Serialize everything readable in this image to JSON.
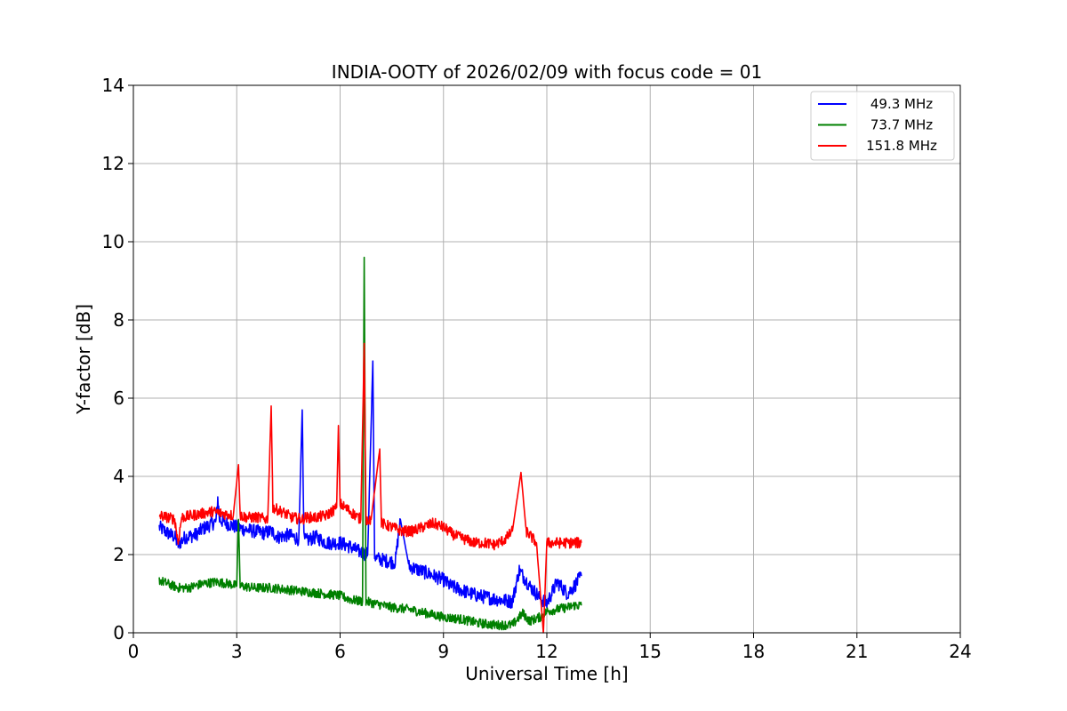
{
  "chart_data": {
    "type": "line",
    "title": "INDIA-OOTY of 2026/02/09 with focus code = 01",
    "xlabel": "Universal Time [h]",
    "ylabel": "Y-factor [dB]",
    "xlim": [
      0,
      24
    ],
    "ylim": [
      0,
      14
    ],
    "xticks": [
      0,
      3,
      6,
      9,
      12,
      15,
      18,
      21,
      24
    ],
    "yticks": [
      0,
      2,
      4,
      6,
      8,
      10,
      12,
      14
    ],
    "grid": true,
    "legend_position": "top-right",
    "series": [
      {
        "name": "49.3 MHz",
        "color": "#0000ff",
        "x": [
          0.75,
          1.0,
          1.2,
          1.3,
          1.5,
          1.8,
          2.0,
          2.2,
          2.4,
          2.45,
          2.5,
          2.7,
          3.0,
          3.2,
          3.5,
          3.8,
          4.0,
          4.2,
          4.5,
          4.8,
          4.9,
          4.95,
          5.0,
          5.3,
          5.6,
          6.0,
          6.3,
          6.5,
          6.8,
          6.95,
          7.0,
          7.05,
          7.3,
          7.6,
          7.75,
          8.0,
          8.3,
          8.6,
          9.0,
          9.2,
          9.5,
          9.8,
          10.0,
          10.3,
          10.6,
          11.0,
          11.2,
          11.5,
          11.8,
          12.0,
          12.3,
          12.6,
          12.8,
          13.0
        ],
        "values": [
          2.7,
          2.55,
          2.45,
          2.25,
          2.45,
          2.5,
          2.65,
          2.75,
          2.85,
          3.45,
          2.9,
          2.8,
          2.7,
          2.65,
          2.6,
          2.55,
          2.6,
          2.45,
          2.5,
          2.4,
          5.7,
          2.4,
          2.35,
          2.45,
          2.3,
          2.3,
          2.2,
          2.1,
          2.0,
          6.95,
          2.0,
          1.9,
          1.85,
          1.8,
          2.9,
          1.7,
          1.6,
          1.5,
          1.35,
          1.2,
          1.1,
          1.0,
          0.95,
          0.9,
          0.85,
          0.8,
          1.6,
          1.2,
          0.9,
          0.75,
          1.3,
          1.0,
          1.2,
          1.45
        ]
      },
      {
        "name": "73.7 MHz",
        "color": "#008000",
        "x": [
          0.75,
          1.0,
          1.3,
          1.6,
          2.0,
          2.4,
          2.8,
          3.0,
          3.05,
          3.1,
          3.5,
          4.0,
          4.5,
          5.0,
          5.5,
          6.0,
          6.3,
          6.65,
          6.7,
          6.75,
          7.0,
          7.5,
          8.0,
          8.5,
          9.0,
          9.5,
          10.0,
          10.5,
          11.0,
          11.3,
          11.5,
          11.8,
          12.0,
          12.3,
          12.6,
          12.8,
          13.0
        ],
        "values": [
          1.35,
          1.25,
          1.15,
          1.15,
          1.25,
          1.3,
          1.25,
          1.2,
          2.9,
          1.2,
          1.15,
          1.15,
          1.1,
          1.05,
          1.0,
          0.95,
          0.85,
          0.8,
          9.6,
          0.8,
          0.75,
          0.65,
          0.6,
          0.5,
          0.4,
          0.35,
          0.25,
          0.2,
          0.2,
          0.5,
          0.3,
          0.4,
          0.55,
          0.6,
          0.65,
          0.7,
          0.7
        ]
      },
      {
        "name": "151.8 MHz",
        "color": "#ff0000",
        "x": [
          0.75,
          1.0,
          1.2,
          1.3,
          1.4,
          1.7,
          2.0,
          2.3,
          2.6,
          2.9,
          3.05,
          3.1,
          3.3,
          3.6,
          3.9,
          4.0,
          4.05,
          4.3,
          4.6,
          4.9,
          5.0,
          5.3,
          5.6,
          5.9,
          5.95,
          6.0,
          6.3,
          6.6,
          6.7,
          6.75,
          6.9,
          7.15,
          7.2,
          7.5,
          7.8,
          8.1,
          8.4,
          8.7,
          9.0,
          9.3,
          9.6,
          9.9,
          10.2,
          10.5,
          10.8,
          11.0,
          11.25,
          11.4,
          11.7,
          11.9,
          12.0,
          12.2,
          12.5,
          12.8,
          13.0
        ],
        "values": [
          3.0,
          2.95,
          2.9,
          2.3,
          2.95,
          3.0,
          3.05,
          3.1,
          3.05,
          3.0,
          4.3,
          3.0,
          2.95,
          2.95,
          2.9,
          5.8,
          3.2,
          3.1,
          2.95,
          2.9,
          2.95,
          2.95,
          3.0,
          3.2,
          5.3,
          3.3,
          3.1,
          2.9,
          7.4,
          2.9,
          2.9,
          4.7,
          2.8,
          2.7,
          2.6,
          2.6,
          2.7,
          2.8,
          2.7,
          2.5,
          2.4,
          2.3,
          2.3,
          2.25,
          2.4,
          2.6,
          4.1,
          2.6,
          2.3,
          0.0,
          2.3,
          2.3,
          2.3,
          2.3,
          2.3
        ]
      }
    ]
  }
}
